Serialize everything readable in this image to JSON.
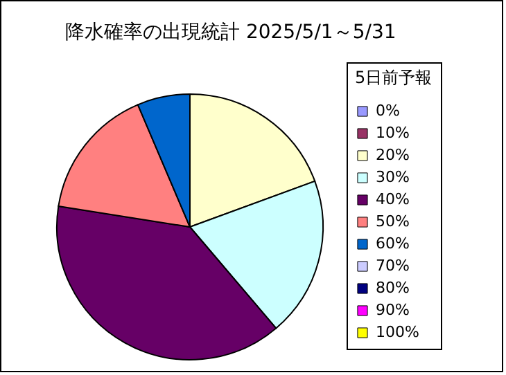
{
  "chart_data": {
    "type": "pie",
    "title": "降水確率の出現統計 2025/5/1～5/31",
    "legend_title": "5日前予報",
    "legend": "right",
    "categories": [
      "0%",
      "10%",
      "20%",
      "30%",
      "40%",
      "50%",
      "60%",
      "70%",
      "80%",
      "90%",
      "100%"
    ],
    "values": [
      0,
      0,
      19.4,
      19.4,
      38.7,
      16.1,
      6.4,
      0,
      0,
      0,
      0
    ],
    "colors": [
      "#9999ff",
      "#993366",
      "#ffffcc",
      "#ccffff",
      "#660066",
      "#ff8080",
      "#0066cc",
      "#ccccff",
      "#000080",
      "#ff00ff",
      "#ffff00"
    ]
  }
}
